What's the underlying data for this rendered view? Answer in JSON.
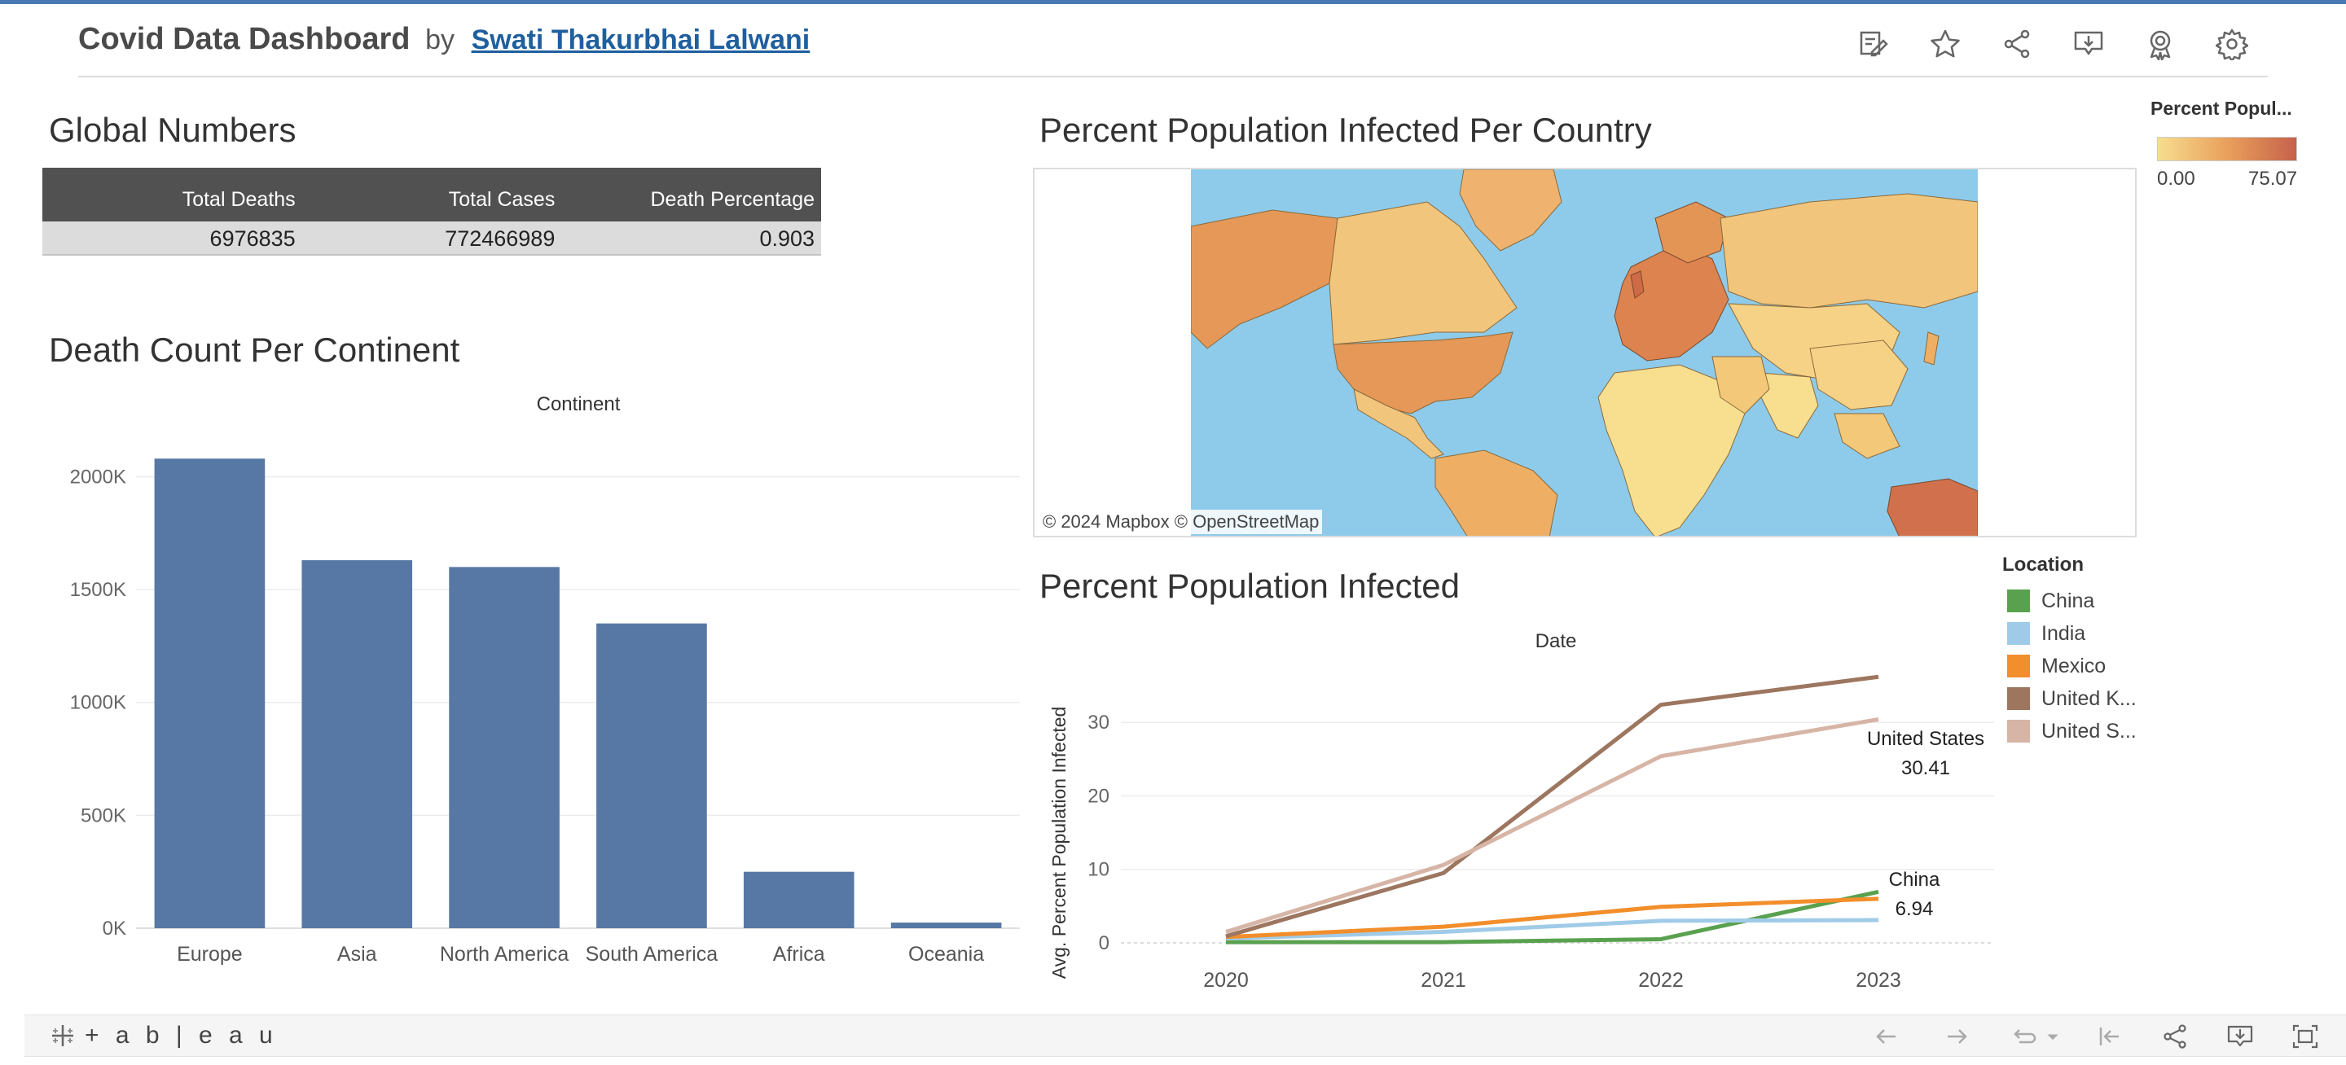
{
  "header": {
    "title": "Covid Data Dashboard",
    "by": "by",
    "author": "Swati Thakurbhai Lalwani",
    "toolbar": [
      "edit-icon",
      "star-icon",
      "share-icon",
      "download-icon",
      "badge-icon",
      "gear-icon"
    ]
  },
  "global": {
    "title": "Global Numbers",
    "columns": [
      "Total Deaths",
      "Total Cases",
      "Death Percentage"
    ],
    "row": [
      "6976835",
      "772466989",
      "0.903"
    ]
  },
  "death_chart": {
    "title": "Death Count Per Continent",
    "header": "Continent"
  },
  "map": {
    "title": "Percent Population Infected Per Country",
    "attribution": "© 2024 Mapbox  © OpenStreetMap",
    "legend_title": "Percent Popul...",
    "legend_min": "0.00",
    "legend_max": "75.07",
    "colors": {
      "low": "#f7dd8f",
      "mid": "#e9a05c",
      "high": "#c6614b",
      "ocean": "#8ecbea"
    }
  },
  "line_panel": {
    "title": "Percent Population Infected",
    "header": "Date"
  },
  "location_legend": {
    "title": "Location",
    "items": [
      {
        "label": "China",
        "color": "#59a14f"
      },
      {
        "label": "India",
        "color": "#a0cbe8"
      },
      {
        "label": "Mexico",
        "color": "#f28e2b"
      },
      {
        "label": "United K...",
        "color": "#9d7660"
      },
      {
        "label": "United S...",
        "color": "#d7b5a6"
      }
    ]
  },
  "chart_data": [
    {
      "type": "bar",
      "title": "Death Count Per Continent",
      "xlabel": "Continent",
      "categories": [
        "Europe",
        "Asia",
        "North America",
        "South America",
        "Africa",
        "Oceania"
      ],
      "values": [
        2080000,
        1630000,
        1600000,
        1350000,
        250000,
        25000
      ],
      "ylim": [
        0,
        2200000
      ],
      "yticks": [
        0,
        500000,
        1000000,
        1500000,
        2000000
      ],
      "ytick_labels": [
        "0K",
        "500K",
        "1000K",
        "1500K",
        "2000K"
      ],
      "color": "#5778a4",
      "grid": true
    },
    {
      "type": "line",
      "title": "Percent Population Infected",
      "xlabel": "Date",
      "ylabel": "Avg. Percent Population Infected",
      "x": [
        2020,
        2021,
        2022,
        2023
      ],
      "xtick_labels": [
        "2020",
        "2021",
        "2022",
        "2023"
      ],
      "ylim": [
        0,
        38
      ],
      "yticks": [
        0,
        10,
        20,
        30
      ],
      "grid": true,
      "series": [
        {
          "name": "China",
          "color": "#59a14f",
          "values": [
            0.1,
            0.1,
            0.5,
            6.94
          ]
        },
        {
          "name": "India",
          "color": "#a0cbe8",
          "values": [
            0.6,
            1.5,
            3.0,
            3.1
          ]
        },
        {
          "name": "Mexico",
          "color": "#f28e2b",
          "values": [
            0.8,
            2.2,
            4.9,
            6.0
          ]
        },
        {
          "name": "United K...",
          "color": "#9d7660",
          "values": [
            0.9,
            9.5,
            32.4,
            36.2
          ]
        },
        {
          "name": "United S...",
          "color": "#d7b5a6",
          "values": [
            1.5,
            10.6,
            25.4,
            30.41
          ]
        }
      ],
      "annotations": [
        {
          "series": "United States",
          "value": "30.41"
        },
        {
          "series": "China",
          "value": "6.94"
        }
      ]
    }
  ],
  "footer": {
    "logo_text": "+ a b | e a u",
    "controls": [
      "undo-icon",
      "redo-icon",
      "revert-icon",
      "revert-dropdown-icon",
      "reset-icon",
      "share-icon",
      "download-icon",
      "fullscreen-icon"
    ]
  }
}
